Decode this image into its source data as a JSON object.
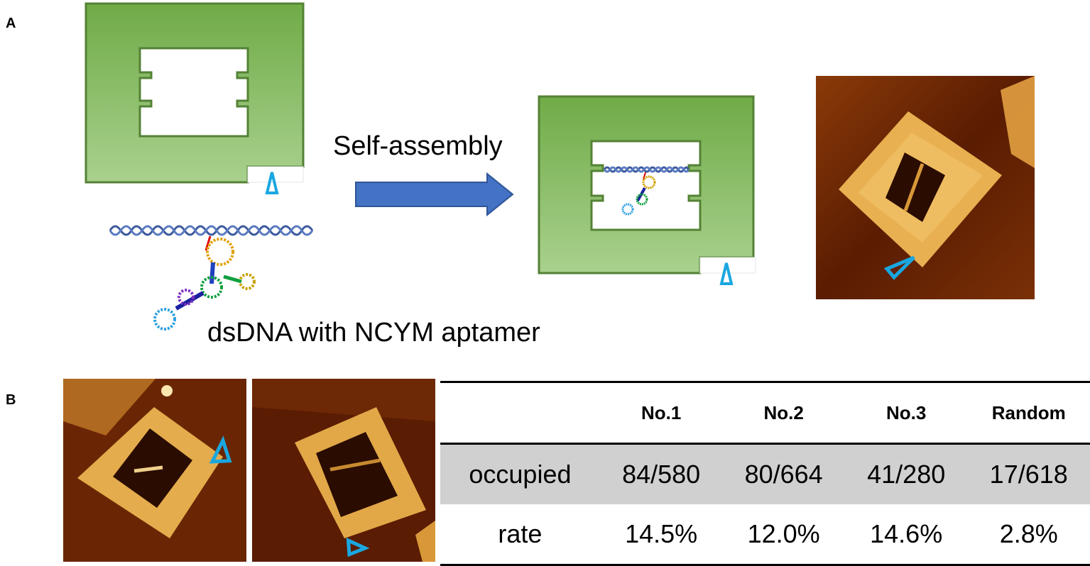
{
  "panel_a": {
    "letter": "A",
    "arrow_label": "Self-assembly",
    "component_label": "dsDNA with NCYM aptamer"
  },
  "panel_b": {
    "letter": "B",
    "table": {
      "columns": [
        "",
        "No.1",
        "No.2",
        "No.3",
        "Random"
      ],
      "rows": [
        {
          "label": "occupied",
          "values": [
            "84/580",
            "80/664",
            "41/280",
            "17/618"
          ]
        },
        {
          "label": "rate",
          "values": [
            "14.5%",
            "12.0%",
            "14.6%",
            "2.8%"
          ]
        }
      ]
    }
  },
  "colors": {
    "frame_green_dark": "#70ab47",
    "frame_green_light": "#a8d08d",
    "frame_border": "#548235",
    "arrow_blue": "#4472c4",
    "marker_cyan": "#1aa7e0",
    "dna_blue": "#3d5a9e",
    "afm_dark": "#3a1200",
    "afm_bright": "#f2c060"
  }
}
